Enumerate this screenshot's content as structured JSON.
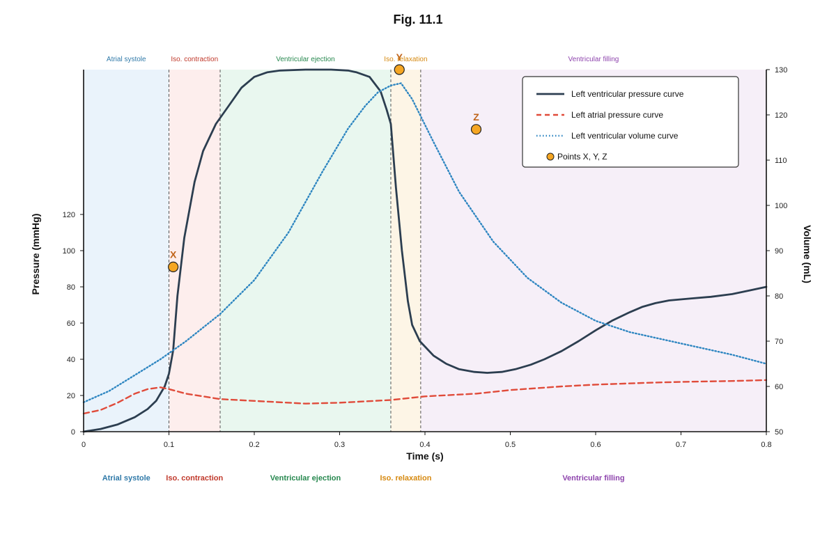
{
  "figure": {
    "title": "Fig. 11.1"
  },
  "colors": {
    "pressure": "#2c3e50",
    "atrial": "#e04b3a",
    "volume": "#2e86c1",
    "points": "#f5a623",
    "point_label": "#c0641a"
  },
  "chart_data": {
    "type": "line",
    "title": "Fig. 11.1",
    "xlabel": "Time (s)",
    "ylabel": "Pressure (mmHg)",
    "y2label": "Volume (mL)",
    "xlim": [
      0,
      0.8
    ],
    "ylim": [
      0,
      200
    ],
    "y2lim": [
      50,
      130
    ],
    "x_ticks": [
      "0",
      "0.1",
      "0.2",
      "0.3",
      "0.4",
      "0.5",
      "0.6",
      "0.7",
      "0.8"
    ],
    "y_ticks": [
      "0",
      "20",
      "40",
      "60",
      "80",
      "100",
      "120"
    ],
    "y2_ticks": [
      "50",
      "60",
      "70",
      "80",
      "90",
      "100",
      "110",
      "120",
      "130"
    ],
    "grid": false,
    "legend_position": "top-right",
    "phases": [
      {
        "name": "Atrial systole",
        "start": 0.0,
        "end": 0.1,
        "fill": "#eaf3fb",
        "color": "#2f79a8"
      },
      {
        "name": "Iso. contraction",
        "start": 0.1,
        "end": 0.16,
        "fill": "#fdeeed",
        "color": "#c0392b"
      },
      {
        "name": "Ventricular ejection",
        "start": 0.16,
        "end": 0.36,
        "fill": "#e9f7ef",
        "color": "#27884f"
      },
      {
        "name": "Iso. relaxation",
        "start": 0.36,
        "end": 0.395,
        "fill": "#fdf5e6",
        "color": "#d68910"
      },
      {
        "name": "Ventricular filling",
        "start": 0.395,
        "end": 0.8,
        "fill": "#f6eff8",
        "color": "#8e44ad"
      }
    ],
    "boundaries": [
      0.1,
      0.16,
      0.36,
      0.395
    ],
    "series": [
      {
        "name": "Left ventricular pressure curve",
        "axis": "left",
        "style": "solid",
        "x": [
          0,
          0.02,
          0.04,
          0.06,
          0.075,
          0.085,
          0.095,
          0.1,
          0.105,
          0.11,
          0.118,
          0.13,
          0.14,
          0.155,
          0.17,
          0.185,
          0.2,
          0.215,
          0.23,
          0.26,
          0.29,
          0.31,
          0.32,
          0.335,
          0.348,
          0.355,
          0.36,
          0.366,
          0.373,
          0.38,
          0.385,
          0.394,
          0.41,
          0.425,
          0.44,
          0.458,
          0.473,
          0.49,
          0.506,
          0.524,
          0.54,
          0.56,
          0.58,
          0.6,
          0.62,
          0.64,
          0.655,
          0.67,
          0.686,
          0.71,
          0.735,
          0.76,
          0.78,
          0.8
        ],
        "values": [
          0,
          1.5,
          4,
          8,
          12.5,
          17,
          25,
          32,
          45,
          75,
          107,
          138,
          155,
          170,
          180,
          190,
          196,
          198.5,
          199.5,
          200,
          200,
          199.5,
          198.5,
          196,
          188,
          178,
          170,
          135,
          100,
          72,
          59,
          50,
          42,
          37.5,
          34.5,
          33,
          32.5,
          33,
          34.5,
          37,
          40,
          44.5,
          50,
          56,
          61.5,
          66,
          69,
          71,
          72.5,
          73.5,
          74.5,
          76,
          78,
          80
        ]
      },
      {
        "name": "Left atrial pressure curve",
        "axis": "left",
        "style": "dashed",
        "x": [
          0,
          0.02,
          0.04,
          0.06,
          0.075,
          0.09,
          0.1,
          0.12,
          0.14,
          0.16,
          0.2,
          0.26,
          0.3,
          0.36,
          0.4,
          0.46,
          0.5,
          0.56,
          0.6,
          0.66,
          0.7,
          0.76,
          0.8
        ],
        "values": [
          10,
          12,
          16,
          21,
          23.5,
          24.5,
          23.5,
          21,
          19.5,
          18,
          17,
          15.5,
          16,
          17.5,
          19.5,
          21,
          23,
          25,
          26,
          27,
          27.5,
          28,
          28.5
        ]
      },
      {
        "name": "Left ventricular volume curve",
        "axis": "right",
        "style": "dotted",
        "x": [
          0,
          0.03,
          0.06,
          0.09,
          0.12,
          0.16,
          0.2,
          0.24,
          0.28,
          0.31,
          0.33,
          0.345,
          0.36,
          0.372,
          0.385,
          0.41,
          0.44,
          0.48,
          0.52,
          0.56,
          0.6,
          0.64,
          0.7,
          0.76,
          0.8
        ],
        "values": [
          56.5,
          59,
          62.5,
          66,
          70,
          76,
          83.5,
          94,
          107.5,
          117,
          122,
          125,
          126.5,
          127,
          123.5,
          114,
          103,
          92,
          84,
          78.5,
          74.5,
          72,
          69.5,
          67,
          65
        ]
      }
    ],
    "points": [
      {
        "label": "X",
        "x": 0.105,
        "y": 91
      },
      {
        "label": "Y",
        "x": 0.37,
        "y": 200
      },
      {
        "label": "Z",
        "x": 0.46,
        "y": 167
      }
    ],
    "points_legend": "Points X, Y, Z"
  }
}
